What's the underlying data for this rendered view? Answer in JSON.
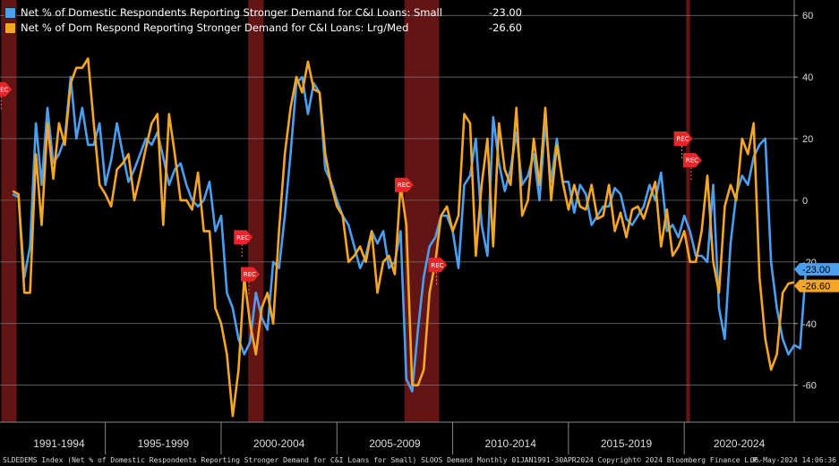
{
  "chart_data": {
    "type": "line",
    "x_start": "1991-01",
    "x_frequency": "quarterly",
    "ylim": [
      -72,
      65
    ],
    "yticks": [
      60,
      40,
      20,
      0,
      -20,
      -40,
      -60
    ],
    "grid": true,
    "axis_side": "right",
    "xlabels": [
      "1991-1994",
      "1995-1999",
      "2000-2004",
      "2005-2009",
      "2010-2014",
      "2015-2019",
      "2020-2024"
    ],
    "recessions": [
      {
        "start": "1990-07",
        "end": "1991-03"
      },
      {
        "start": "2001-03",
        "end": "2001-11"
      },
      {
        "start": "2007-12",
        "end": "2009-06"
      },
      {
        "start": "2020-02",
        "end": "2020-04"
      }
    ],
    "rec_label": "REC",
    "series": [
      {
        "name": "Net % of Domestic Respondents Reporting Stronger Demand for C&I Loans: Small",
        "last_value": "-23.00",
        "color": "#4a9ff0",
        "values": [
          2,
          1,
          -25,
          -15,
          25,
          5,
          30,
          12,
          15,
          20,
          40,
          20,
          30,
          18,
          18,
          25,
          5,
          13,
          25,
          15,
          6,
          10,
          15,
          20,
          18,
          22,
          14,
          5,
          10,
          12,
          5,
          0,
          -2,
          0,
          6,
          -10,
          -5,
          -30,
          -35,
          -45,
          -50,
          -46,
          -30,
          -38,
          -42,
          -20,
          -22,
          -5,
          15,
          38,
          40,
          28,
          38,
          35,
          10,
          6,
          0,
          -5,
          -8,
          -15,
          -22,
          -18,
          -10,
          -14,
          -10,
          -22,
          -20,
          -10,
          -58,
          -62,
          -42,
          -25,
          -15,
          -12,
          -5,
          -5,
          -10,
          -22,
          5,
          8,
          20,
          -8,
          -18,
          27,
          12,
          3,
          10,
          22,
          5,
          8,
          15,
          0,
          25,
          6,
          20,
          6,
          6,
          -4,
          5,
          2,
          -8,
          -5,
          -2,
          -2,
          4,
          2,
          -6,
          -8,
          -5,
          -2,
          5,
          0,
          9,
          -10,
          -8,
          -12,
          -5,
          -10,
          -18,
          -18,
          -20,
          5,
          -35,
          -45,
          -14,
          2,
          8,
          5,
          14,
          18,
          20,
          -20,
          -35,
          -45,
          -50,
          -47,
          -48,
          -23
        ]
      },
      {
        "name": "Net % of Dom Respond Reporting Stronger Demand for C&I Loans: Lrg/Med",
        "last_value": "-26.60",
        "color": "#f5a623",
        "values": [
          3,
          2,
          -30,
          -30,
          15,
          -8,
          25,
          7,
          25,
          18,
          38,
          43,
          43,
          46,
          25,
          5,
          2,
          -2,
          10,
          12,
          15,
          0,
          8,
          17,
          25,
          28,
          -8,
          28,
          15,
          0,
          0,
          -3,
          9,
          -10,
          -10,
          -35,
          -40,
          -50,
          -70,
          -55,
          -25,
          -40,
          -50,
          -35,
          -30,
          -40,
          -10,
          15,
          30,
          40,
          35,
          45,
          36,
          35,
          15,
          5,
          -2,
          -5,
          -20,
          -18,
          -15,
          -20,
          -10,
          -30,
          -20,
          -18,
          -24,
          5,
          -8,
          -60,
          -60,
          -55,
          -30,
          -20,
          -5,
          -2,
          -10,
          -5,
          28,
          25,
          -18,
          5,
          20,
          -15,
          25,
          10,
          5,
          30,
          -5,
          0,
          20,
          5,
          30,
          0,
          18,
          6,
          -3,
          5,
          -2,
          -3,
          5,
          -6,
          -5,
          5,
          -10,
          -4,
          -12,
          -3,
          -2,
          -6,
          0,
          6,
          -15,
          -3,
          -18,
          -15,
          -10,
          -20,
          -20,
          -10,
          8,
          -20,
          -30,
          -2,
          5,
          0,
          20,
          15,
          25,
          -25,
          -45,
          -55,
          -50,
          -30,
          -27,
          -26.6
        ]
      }
    ]
  },
  "footer": {
    "left": "SLDEDEMS Index (Net % of Domestic Respondents Reporting Stronger Demand for C&I Loans for Small) SLOOS Demand  Monthly 01JAN1991-30APR2024  Copyright© 2024 Bloomberg Finance L.P.",
    "right": "06-May-2024 14:06:36"
  }
}
